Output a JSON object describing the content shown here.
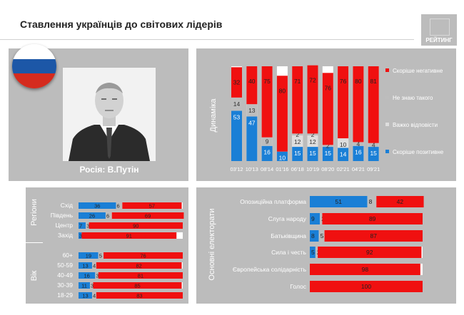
{
  "title": "Ставлення українців до світових лідерів",
  "logo_text": "РЕЙТИНГ",
  "flag": {
    "colors": [
      "#ffffff",
      "#1c57a7",
      "#d52b1e"
    ]
  },
  "caption": "Росія: В.Путін",
  "colors": {
    "positive": "#1a7fd6",
    "dontknow": "#bdbdbd",
    "hard": "#dedede",
    "negative": "#f01010",
    "panel": "#bcbcbc"
  },
  "chart_data": [
    {
      "type": "bar",
      "stacked": true,
      "label": "Динаміка",
      "categories": [
        "03'12",
        "10'13",
        "08'14",
        "01'16",
        "06'18",
        "10'19",
        "08'20",
        "02'21",
        "04'21",
        "09'21"
      ],
      "series": [
        {
          "name": "Скоріше позитивне",
          "values": [
            53,
            47,
            16,
            10,
            15,
            15,
            15,
            14,
            16,
            15
          ]
        },
        {
          "name": "Важко відповісти",
          "values": [
            null,
            null,
            null,
            null,
            12,
            12,
            null,
            10,
            null,
            null
          ]
        },
        {
          "name": "Не знаю такого",
          "values": [
            14,
            13,
            9,
            null,
            2,
            2,
            2,
            null,
            4,
            4
          ]
        },
        {
          "name": "Скоріше негативне",
          "values": [
            32,
            40,
            75,
            80,
            71,
            72,
            76,
            76,
            80,
            81
          ]
        }
      ],
      "legend": [
        "Скоріше негативне",
        "Не знаю такого",
        "Важко відповісти",
        "Скоріше позитивне"
      ],
      "legend_position": "right"
    },
    {
      "type": "bar",
      "orientation": "horizontal",
      "stacked": true,
      "groups": [
        {
          "label": "Регіони",
          "rows": [
            {
              "name": "Схід",
              "values": [
                36,
                6,
                57
              ]
            },
            {
              "name": "Південь",
              "values": [
                26,
                6,
                69
              ]
            },
            {
              "name": "Центр",
              "values": [
                7,
                3,
                90
              ]
            },
            {
              "name": "Захід",
              "values": [
                3,
                null,
                91
              ]
            }
          ]
        },
        {
          "label": "Вік",
          "rows": [
            {
              "name": "60+",
              "values": [
                19,
                5,
                76
              ]
            },
            {
              "name": "50-59",
              "values": [
                13,
                4,
                82
              ]
            },
            {
              "name": "40-49",
              "values": [
                16,
                3,
                81
              ]
            },
            {
              "name": "30-39",
              "values": [
                11,
                3,
                85
              ]
            },
            {
              "name": "18-29",
              "values": [
                13,
                4,
                83
              ]
            }
          ]
        }
      ]
    },
    {
      "type": "bar",
      "orientation": "horizontal",
      "stacked": true,
      "label": "Основні електорати",
      "rows": [
        {
          "name": "Опозиційна платформа",
          "values": [
            51,
            8,
            42
          ]
        },
        {
          "name": "Слуга народу",
          "values": [
            9,
            2,
            89
          ]
        },
        {
          "name": "Батьківщина",
          "values": [
            8,
            5,
            87
          ]
        },
        {
          "name": "Сила і честь",
          "values": [
            5,
            2,
            92
          ]
        },
        {
          "name": "Європейська солідарність",
          "values": [
            null,
            null,
            98
          ]
        },
        {
          "name": "Голос",
          "values": [
            null,
            null,
            100
          ]
        }
      ]
    }
  ]
}
